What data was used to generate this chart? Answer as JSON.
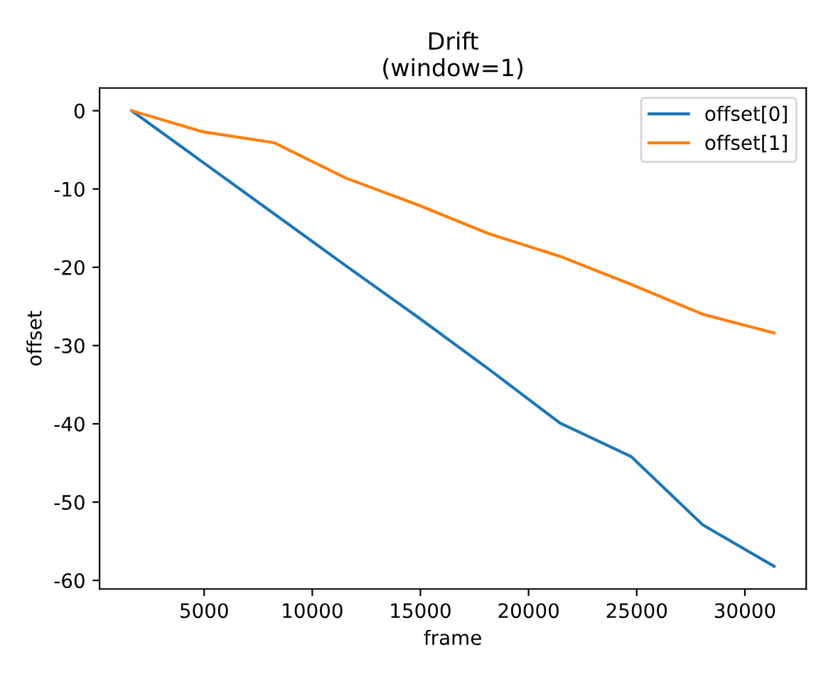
{
  "chart_data": {
    "type": "line",
    "title": "Drift\n(window=1)",
    "xlabel": "frame",
    "ylabel": "offset",
    "x": [
      1650,
      4950,
      8250,
      11550,
      14850,
      18150,
      21450,
      24750,
      28050,
      31350
    ],
    "series": [
      {
        "name": "offset[0]",
        "color": "#1f77b4",
        "values": [
          0,
          -6.6,
          -13.2,
          -19.8,
          -26.3,
          -33.0,
          -39.9,
          -44.2,
          -52.9,
          -58.2
        ]
      },
      {
        "name": "offset[1]",
        "color": "#ff7f0e",
        "values": [
          0,
          -2.7,
          -4.1,
          -8.6,
          -12.0,
          -15.7,
          -18.6,
          -22.2,
          -26.0,
          -28.4
        ]
      }
    ],
    "xlim": [
      165,
      32835
    ],
    "ylim": [
      -61.1,
      2.9
    ],
    "xticks": [
      5000,
      10000,
      15000,
      20000,
      25000,
      30000
    ],
    "yticks": [
      -60,
      -50,
      -40,
      -30,
      -20,
      -10,
      0
    ],
    "legend": "top right",
    "grid": false,
    "marker": "none",
    "line_style": "solid"
  }
}
